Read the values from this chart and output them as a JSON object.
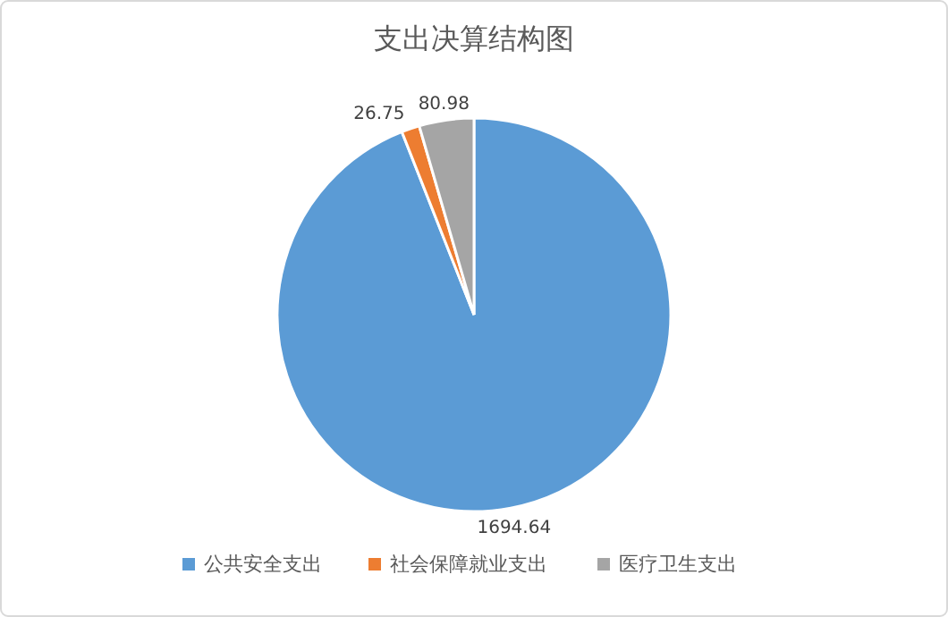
{
  "chart_data": {
    "type": "pie",
    "title": "支出决算结构图",
    "categories": [
      "公共安全支出",
      "社会保障就业支出",
      "医疗卫生支出"
    ],
    "values": [
      1694.64,
      26.75,
      80.98
    ],
    "colors": [
      "#5b9bd5",
      "#ed7d31",
      "#a5a5a5"
    ],
    "data_labels": true,
    "legend": "bottom"
  }
}
